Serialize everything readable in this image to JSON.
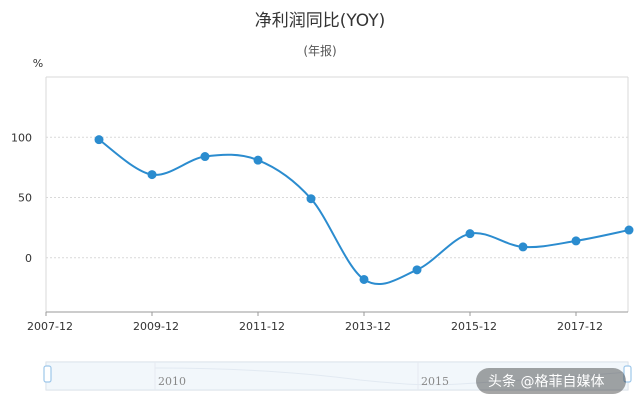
{
  "chart_data": {
    "type": "line",
    "title": "净利润同比(YOY)",
    "subtitle": "(年报)",
    "ylabel": "%",
    "xlabel": "",
    "x": [
      "2008-12",
      "2009-12",
      "2010-12",
      "2011-12",
      "2012-12",
      "2013-12",
      "2014-12",
      "2015-12",
      "2016-12",
      "2017-12",
      "2018-12"
    ],
    "series": [
      {
        "values": [
          98,
          69,
          84,
          81,
          49,
          -18,
          -10,
          20,
          9,
          14,
          23
        ]
      }
    ],
    "x_tick_labels": [
      "2007-12",
      "2009-12",
      "2011-12",
      "2013-12",
      "2015-12",
      "2017-12"
    ],
    "y_ticks": [
      100,
      50,
      0
    ],
    "ylim": [
      -45,
      150
    ],
    "grid": true,
    "line_color": "#2b8ccf"
  },
  "zoom_slider": {
    "labels": [
      "2010",
      "2015"
    ]
  },
  "watermark": {
    "text": "头条 @格菲自媒体"
  },
  "colors": {
    "series": "#2b8ccf",
    "grid": "#d9d9d9",
    "axis": "#999999",
    "slider_fill": "#e8f1f8",
    "slider_border": "#c9d9e8",
    "handle": "#9ec7ea"
  }
}
